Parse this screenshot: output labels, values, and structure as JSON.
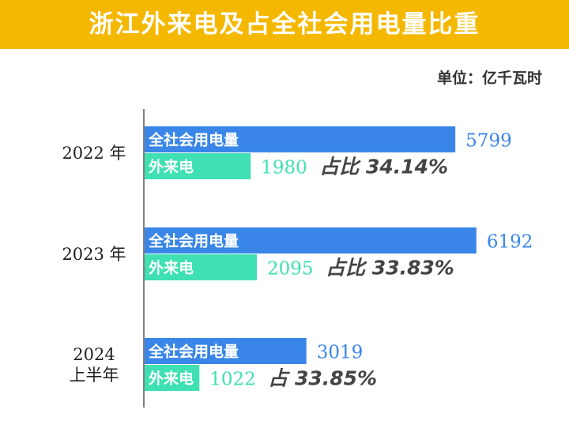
{
  "chart_data": {
    "type": "grouped-hbar",
    "title": "浙江外来电及占全社会用电量比重",
    "unit": "单位：亿千瓦时",
    "categories": [
      "2022 年",
      "2023 年",
      "2024\n上半年"
    ],
    "series": [
      {
        "name": "全社会用电量",
        "color": "#3a86e8",
        "values": [
          5799,
          6192,
          3019
        ]
      },
      {
        "name": "外来电",
        "color": "#3fe0b2",
        "values": [
          1980,
          2095,
          1022
        ]
      }
    ],
    "annotations": [
      "占比 34.14%",
      "占比 33.83%",
      "占 33.85%"
    ]
  }
}
